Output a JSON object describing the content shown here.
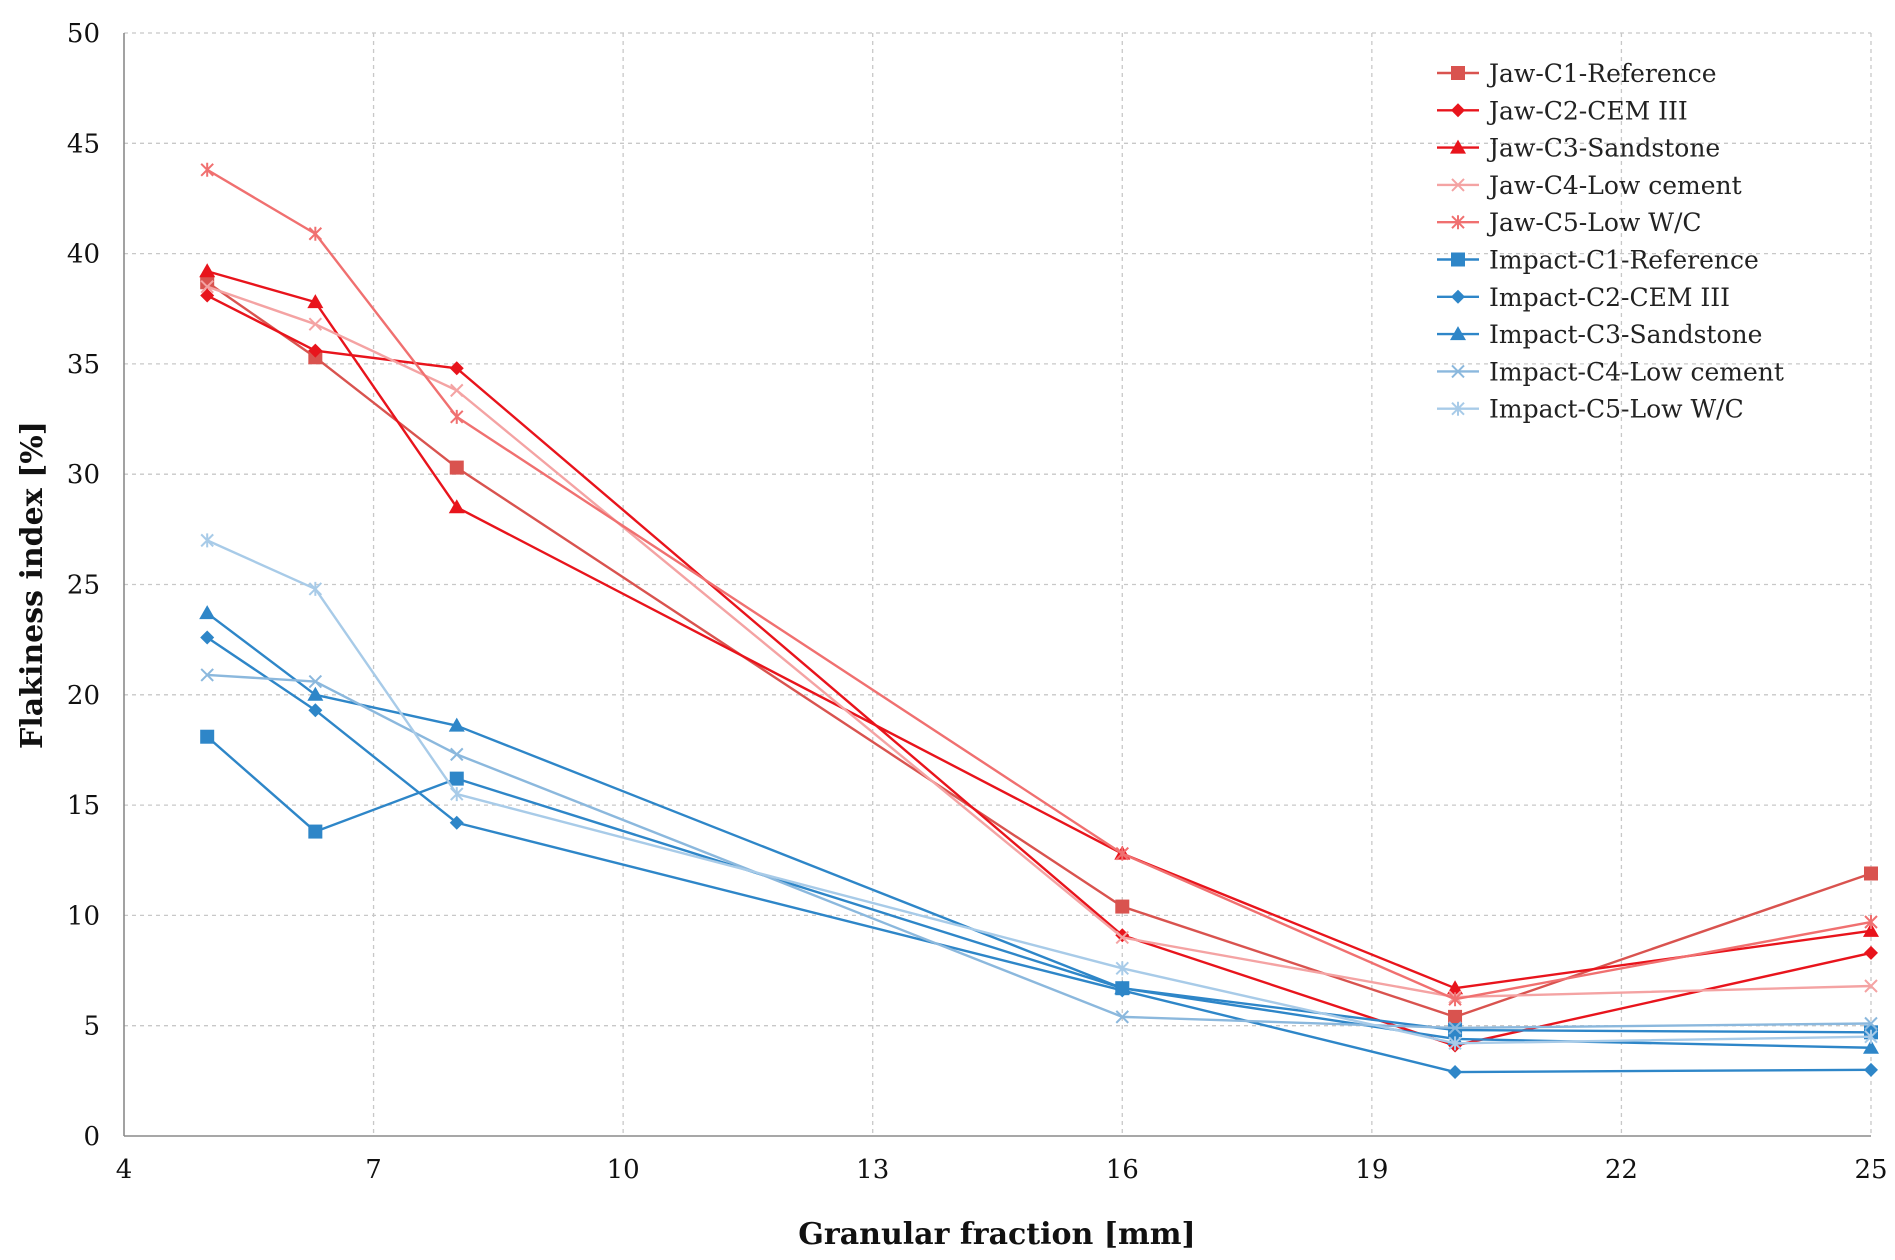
{
  "chart_data": {
    "type": "line",
    "title": "",
    "xlabel": "Granular fraction [mm]",
    "ylabel": "Flakiness index  [%]",
    "xlim": [
      4,
      25
    ],
    "ylim": [
      0,
      50
    ],
    "xticks": [
      4,
      7,
      10,
      13,
      16,
      19,
      22,
      25
    ],
    "yticks": [
      0,
      5,
      10,
      15,
      20,
      25,
      30,
      35,
      40,
      45,
      50
    ],
    "grid": true,
    "legend_position": "top-right",
    "x": [
      5,
      6.3,
      8,
      16,
      20,
      25
    ],
    "series": [
      {
        "name": "Jaw-C1-Reference",
        "color": "#d9534f",
        "marker": "square",
        "values": [
          38.7,
          35.3,
          30.3,
          10.4,
          5.4,
          11.9
        ]
      },
      {
        "name": "Jaw-C2-CEM III",
        "color": "#e8141c",
        "marker": "diamond",
        "values": [
          38.1,
          35.6,
          34.8,
          9.1,
          4.1,
          8.3
        ]
      },
      {
        "name": "Jaw-C3-Sandstone",
        "color": "#e8141c",
        "marker": "triangle",
        "values": [
          39.2,
          37.8,
          28.5,
          12.8,
          6.7,
          9.3
        ]
      },
      {
        "name": "Jaw-C4-Low cement",
        "color": "#f4a3a3",
        "marker": "x",
        "values": [
          38.5,
          36.8,
          33.8,
          9.0,
          6.3,
          6.8
        ]
      },
      {
        "name": "Jaw-C5-Low W/C",
        "color": "#f07070",
        "marker": "star",
        "values": [
          43.8,
          40.9,
          32.6,
          12.8,
          6.2,
          9.7
        ]
      },
      {
        "name": "Impact-C1-Reference",
        "color": "#2e86c8",
        "marker": "square",
        "values": [
          18.1,
          13.8,
          16.2,
          6.7,
          4.8,
          4.7
        ]
      },
      {
        "name": "Impact-C2-CEM III",
        "color": "#2e86c8",
        "marker": "diamond",
        "values": [
          22.6,
          19.3,
          14.2,
          6.6,
          2.9,
          3.0
        ]
      },
      {
        "name": "Impact-C3-Sandstone",
        "color": "#2e86c8",
        "marker": "triangle",
        "values": [
          23.7,
          20.0,
          18.6,
          6.7,
          4.4,
          4.0
        ]
      },
      {
        "name": "Impact-C4-Low cement",
        "color": "#8bb8dd",
        "marker": "x",
        "values": [
          20.9,
          20.6,
          17.3,
          5.4,
          4.9,
          5.1
        ]
      },
      {
        "name": "Impact-C5-Low W/C",
        "color": "#a8cbe8",
        "marker": "star",
        "values": [
          27.0,
          24.8,
          15.5,
          7.6,
          4.2,
          4.5
        ]
      }
    ]
  }
}
